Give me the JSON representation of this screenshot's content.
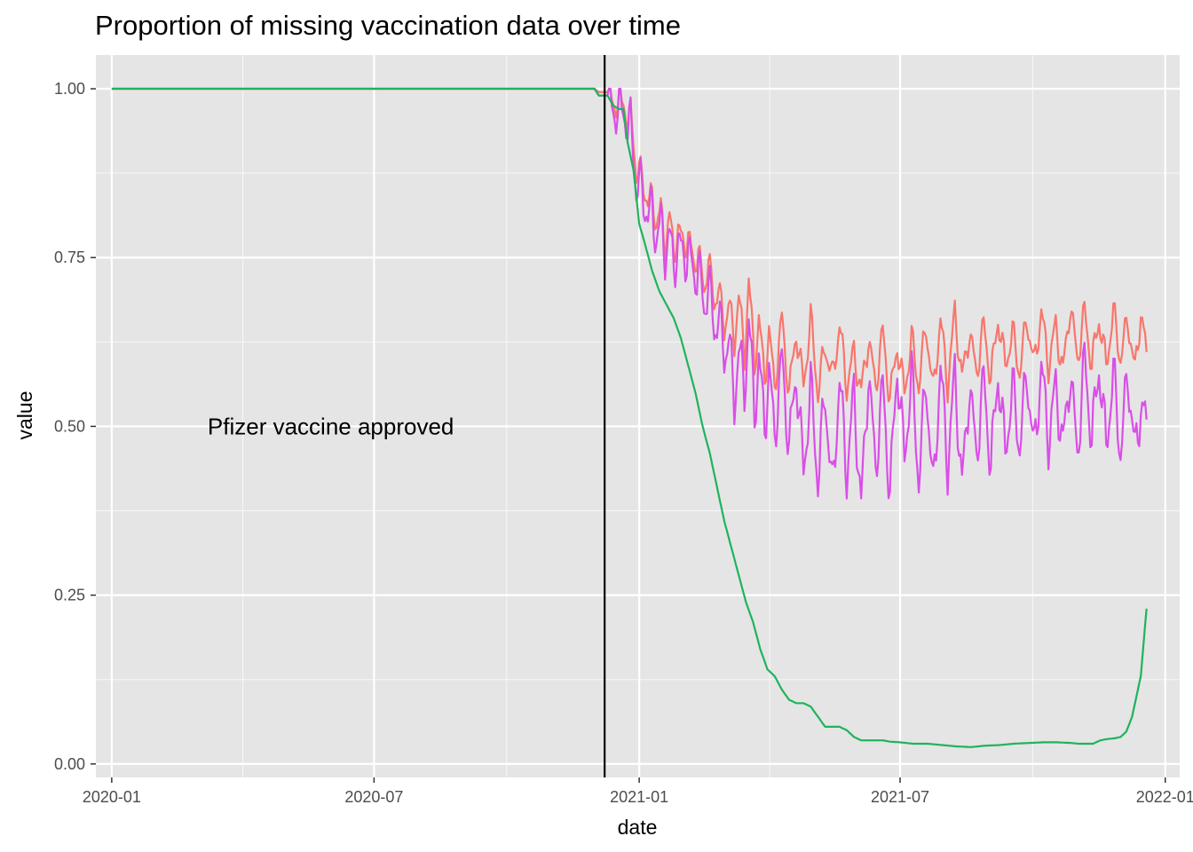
{
  "chart_data": {
    "type": "line",
    "title": "Proportion of missing vaccination data over time",
    "xlabel": "date",
    "ylabel": "value",
    "x_ticks": [
      "2020-01",
      "2020-07",
      "2021-01",
      "2021-07",
      "2022-01"
    ],
    "y_ticks": [
      "0.00",
      "0.25",
      "0.50",
      "0.75",
      "1.00"
    ],
    "xlim": [
      "2019-12-21",
      "2022-01-11"
    ],
    "ylim": [
      -0.02,
      1.05
    ],
    "grid": true,
    "legend": "none",
    "colors": {
      "panel": "#e5e5e5",
      "grid": "#ffffff",
      "red": "#f8766d",
      "green": "#1fb35c",
      "purple": "#d94fe6"
    },
    "vline": {
      "x": "2020-12-08",
      "color": "#000000"
    },
    "annotation": {
      "text": "Pfizer vaccine approved",
      "x": "2020-06-01",
      "y": 0.5
    },
    "series": [
      {
        "color": "#f8766d",
        "x": [
          "2020-01-01",
          "2020-12-01",
          "2020-12-04",
          "2020-12-10",
          "2020-12-14",
          "2020-12-18",
          "2020-12-21",
          "2020-12-24",
          "2020-12-26",
          "2020-12-28",
          "2020-12-30",
          "2021-01-01",
          "2021-01-04",
          "2021-01-07",
          "2021-01-10",
          "2021-01-13",
          "2021-01-16",
          "2021-01-19",
          "2021-01-22",
          "2021-01-25",
          "2021-01-28",
          "2021-02-01",
          "2021-02-04",
          "2021-02-08",
          "2021-02-11",
          "2021-02-15",
          "2021-02-18",
          "2021-02-22",
          "2021-02-25",
          "2021-03-01",
          "2021-03-04",
          "2021-03-08",
          "2021-03-11",
          "2021-03-15",
          "2021-03-18",
          "2021-03-22",
          "2021-03-25",
          "2021-03-29",
          "2021-04-01",
          "2021-04-05",
          "2021-04-10",
          "2021-04-15",
          "2021-04-20",
          "2021-04-25",
          "2021-04-30",
          "2021-05-05",
          "2021-05-10",
          "2021-05-15",
          "2021-05-20",
          "2021-05-25",
          "2021-05-30",
          "2021-06-04",
          "2021-06-09",
          "2021-06-14",
          "2021-06-19",
          "2021-06-24",
          "2021-06-29",
          "2021-07-04",
          "2021-07-09",
          "2021-07-14",
          "2021-07-19",
          "2021-07-24",
          "2021-07-29",
          "2021-08-03",
          "2021-08-08",
          "2021-08-13",
          "2021-08-18",
          "2021-08-23",
          "2021-08-28",
          "2021-09-02",
          "2021-09-07",
          "2021-09-12",
          "2021-09-17",
          "2021-09-22",
          "2021-09-27",
          "2021-10-02",
          "2021-10-07",
          "2021-10-12",
          "2021-10-17",
          "2021-10-22",
          "2021-10-27",
          "2021-11-01",
          "2021-11-06",
          "2021-11-11",
          "2021-11-16",
          "2021-11-21",
          "2021-11-26",
          "2021-12-01",
          "2021-12-06",
          "2021-12-11",
          "2021-12-15",
          "2021-12-19"
        ],
        "y": [
          1.0,
          1.0,
          0.995,
          0.995,
          0.98,
          0.975,
          0.985,
          0.95,
          0.96,
          0.93,
          0.87,
          0.88,
          0.86,
          0.83,
          0.84,
          0.8,
          0.82,
          0.77,
          0.81,
          0.76,
          0.79,
          0.77,
          0.78,
          0.74,
          0.76,
          0.7,
          0.75,
          0.68,
          0.71,
          0.64,
          0.69,
          0.62,
          0.7,
          0.6,
          0.72,
          0.59,
          0.66,
          0.57,
          0.64,
          0.56,
          0.66,
          0.55,
          0.64,
          0.56,
          0.66,
          0.55,
          0.62,
          0.57,
          0.65,
          0.56,
          0.61,
          0.55,
          0.63,
          0.56,
          0.64,
          0.54,
          0.62,
          0.55,
          0.63,
          0.56,
          0.65,
          0.55,
          0.66,
          0.56,
          0.67,
          0.57,
          0.64,
          0.58,
          0.65,
          0.57,
          0.66,
          0.59,
          0.64,
          0.58,
          0.66,
          0.59,
          0.67,
          0.59,
          0.65,
          0.58,
          0.68,
          0.6,
          0.67,
          0.59,
          0.66,
          0.59,
          0.67,
          0.6,
          0.66,
          0.58,
          0.67,
          0.61
        ]
      },
      {
        "color": "#d94fe6",
        "x": [
          "2020-01-01",
          "2020-12-01",
          "2020-12-04",
          "2020-12-10",
          "2020-12-14",
          "2020-12-18",
          "2020-12-21",
          "2020-12-24",
          "2020-12-26",
          "2020-12-28",
          "2020-12-30",
          "2021-01-01",
          "2021-01-04",
          "2021-01-07",
          "2021-01-10",
          "2021-01-13",
          "2021-01-16",
          "2021-01-19",
          "2021-01-22",
          "2021-01-25",
          "2021-01-28",
          "2021-02-01",
          "2021-02-04",
          "2021-02-08",
          "2021-02-11",
          "2021-02-15",
          "2021-02-18",
          "2021-02-22",
          "2021-02-25",
          "2021-03-01",
          "2021-03-04",
          "2021-03-08",
          "2021-03-11",
          "2021-03-15",
          "2021-03-18",
          "2021-03-22",
          "2021-03-25",
          "2021-03-29",
          "2021-04-01",
          "2021-04-05",
          "2021-04-10",
          "2021-04-15",
          "2021-04-20",
          "2021-04-25",
          "2021-04-30",
          "2021-05-05",
          "2021-05-10",
          "2021-05-15",
          "2021-05-20",
          "2021-05-25",
          "2021-05-30",
          "2021-06-04",
          "2021-06-09",
          "2021-06-14",
          "2021-06-19",
          "2021-06-24",
          "2021-06-29",
          "2021-07-04",
          "2021-07-09",
          "2021-07-14",
          "2021-07-19",
          "2021-07-24",
          "2021-07-29",
          "2021-08-03",
          "2021-08-08",
          "2021-08-13",
          "2021-08-18",
          "2021-08-23",
          "2021-08-28",
          "2021-09-02",
          "2021-09-07",
          "2021-09-12",
          "2021-09-17",
          "2021-09-22",
          "2021-09-27",
          "2021-10-02",
          "2021-10-07",
          "2021-10-12",
          "2021-10-17",
          "2021-10-22",
          "2021-10-27",
          "2021-11-01",
          "2021-11-06",
          "2021-11-11",
          "2021-11-16",
          "2021-11-21",
          "2021-11-26",
          "2021-12-01",
          "2021-12-06",
          "2021-12-11",
          "2021-12-15",
          "2021-12-19"
        ],
        "y": [
          1.0,
          1.0,
          0.99,
          0.99,
          0.97,
          0.965,
          0.975,
          0.94,
          0.945,
          0.91,
          0.85,
          0.86,
          0.84,
          0.81,
          0.82,
          0.78,
          0.8,
          0.76,
          0.78,
          0.74,
          0.77,
          0.75,
          0.76,
          0.72,
          0.74,
          0.67,
          0.72,
          0.64,
          0.67,
          0.6,
          0.64,
          0.53,
          0.62,
          0.55,
          0.66,
          0.52,
          0.6,
          0.5,
          0.58,
          0.49,
          0.6,
          0.47,
          0.58,
          0.43,
          0.56,
          0.42,
          0.55,
          0.4,
          0.57,
          0.43,
          0.55,
          0.38,
          0.58,
          0.44,
          0.56,
          0.4,
          0.59,
          0.45,
          0.58,
          0.42,
          0.57,
          0.4,
          0.59,
          0.44,
          0.58,
          0.41,
          0.56,
          0.46,
          0.57,
          0.44,
          0.58,
          0.46,
          0.56,
          0.47,
          0.58,
          0.46,
          0.59,
          0.48,
          0.56,
          0.47,
          0.58,
          0.46,
          0.6,
          0.48,
          0.59,
          0.47,
          0.58,
          0.46,
          0.58,
          0.46,
          0.53,
          0.51
        ]
      },
      {
        "color": "#1fb35c",
        "x": [
          "2020-01-01",
          "2020-12-01",
          "2020-12-04",
          "2020-12-10",
          "2020-12-14",
          "2020-12-18",
          "2020-12-21",
          "2020-12-24",
          "2020-12-28",
          "2021-01-01",
          "2021-01-05",
          "2021-01-10",
          "2021-01-15",
          "2021-01-20",
          "2021-01-25",
          "2021-01-30",
          "2021-02-04",
          "2021-02-09",
          "2021-02-14",
          "2021-02-19",
          "2021-02-24",
          "2021-03-01",
          "2021-03-06",
          "2021-03-11",
          "2021-03-16",
          "2021-03-21",
          "2021-03-26",
          "2021-03-31",
          "2021-04-05",
          "2021-04-10",
          "2021-04-15",
          "2021-04-20",
          "2021-04-25",
          "2021-04-30",
          "2021-05-05",
          "2021-05-10",
          "2021-05-15",
          "2021-05-20",
          "2021-05-25",
          "2021-05-30",
          "2021-06-04",
          "2021-06-09",
          "2021-06-14",
          "2021-06-19",
          "2021-06-24",
          "2021-07-01",
          "2021-07-10",
          "2021-07-20",
          "2021-07-30",
          "2021-08-09",
          "2021-08-19",
          "2021-08-29",
          "2021-09-08",
          "2021-09-18",
          "2021-09-28",
          "2021-10-08",
          "2021-10-18",
          "2021-10-28",
          "2021-11-02",
          "2021-11-07",
          "2021-11-12",
          "2021-11-17",
          "2021-11-22",
          "2021-11-27",
          "2021-12-01",
          "2021-12-05",
          "2021-12-09",
          "2021-12-12",
          "2021-12-15",
          "2021-12-17",
          "2021-12-19"
        ],
        "y": [
          1.0,
          1.0,
          0.99,
          0.99,
          0.975,
          0.97,
          0.97,
          0.92,
          0.88,
          0.8,
          0.77,
          0.73,
          0.7,
          0.68,
          0.66,
          0.63,
          0.59,
          0.55,
          0.5,
          0.46,
          0.41,
          0.36,
          0.32,
          0.28,
          0.24,
          0.21,
          0.17,
          0.14,
          0.13,
          0.11,
          0.095,
          0.09,
          0.09,
          0.085,
          0.07,
          0.055,
          0.055,
          0.055,
          0.05,
          0.04,
          0.035,
          0.035,
          0.035,
          0.035,
          0.033,
          0.032,
          0.03,
          0.03,
          0.028,
          0.026,
          0.025,
          0.027,
          0.028,
          0.03,
          0.031,
          0.032,
          0.032,
          0.031,
          0.03,
          0.03,
          0.03,
          0.035,
          0.037,
          0.038,
          0.04,
          0.048,
          0.07,
          0.1,
          0.13,
          0.18,
          0.23
        ]
      }
    ]
  }
}
